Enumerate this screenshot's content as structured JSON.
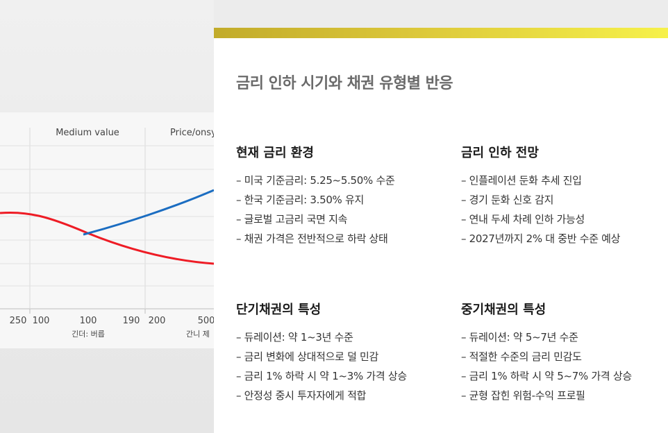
{
  "chart": {
    "col_headers": [
      "Medium value",
      "Price/onsy"
    ],
    "x_ticks": [
      "250",
      "100",
      "100",
      "190",
      "200",
      "500"
    ],
    "x_sublabels": [
      "긴더: 버릅",
      "간니 제"
    ],
    "colors": {
      "red_line": "#ee1c25",
      "blue_line": "#1b6dc1"
    }
  },
  "panel": {
    "title": "금리 인하 시기와 채권 유형별 반응",
    "accent_bar": {
      "from": "#c2ab2a",
      "to": "#f6f14a"
    },
    "sections": [
      {
        "heading": "현재 금리 환경",
        "items": [
          "– 미국 기준금리: 5.25~5.50% 수준",
          "– 한국 기준금리: 3.50% 유지",
          "– 글로벌 고금리 국면 지속",
          "– 채권 가격은 전반적으로 하락 상태"
        ]
      },
      {
        "heading": "금리 인하 전망",
        "items": [
          "– 인플레이션 둔화 추세 진입",
          "– 경기 둔화 신호 감지",
          "– 연내 두세 차례 인하 가능성",
          "– 2027년까지 2% 대 중반 수준 예상"
        ]
      },
      {
        "heading": "단기채권의 특성",
        "items": [
          "– 듀레이션: 약 1~3년 수준",
          "– 금리 변화에 상대적으로 덜 민감",
          "– 금리 1% 하락 시 약 1~3% 가격 상승",
          "– 안정성 중시 투자자에게 적합"
        ]
      },
      {
        "heading": "중기채권의 특성",
        "items": [
          "– 듀레이션: 약 5~7년 수준",
          "– 적절한 수준의 금리 민감도",
          "– 금리 1% 하락 시 약 5~7% 가격 상승",
          "– 균형 잡힌 위험-수익 프로필"
        ]
      }
    ]
  }
}
